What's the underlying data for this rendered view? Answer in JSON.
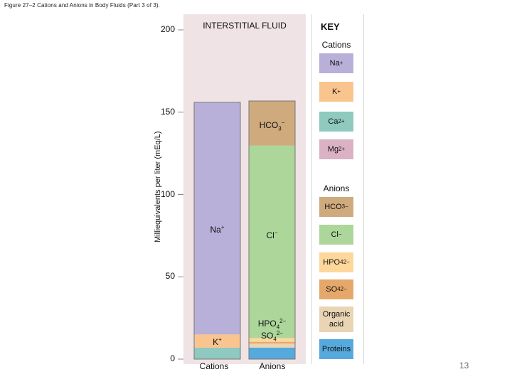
{
  "figure_caption": "Figure 27–2 Cations and Anions in Body Fluids (Part 3 of 3).",
  "slide_number": "13",
  "colors": {
    "Na": "#b8b0d8",
    "K": "#fac48f",
    "Ca": "#8fc9bf",
    "Mg": "#dbb2c4",
    "HCO3": "#cfaa7c",
    "Cl": "#acd69a",
    "HPO4": "#fdd79b",
    "SO4": "#e6a86a",
    "Organic": "#e9d4b4",
    "Proteins": "#56a9dd",
    "panel": "#efe3e6"
  },
  "chart_data": {
    "type": "bar",
    "stacked": true,
    "title": "INTERSTITIAL FLUID",
    "xlabel": "",
    "ylabel": "Milliequivalents per liter (mEq/L)",
    "ylim": [
      0,
      200
    ],
    "yticks": [
      "0",
      "50",
      "100",
      "150",
      "200"
    ],
    "categories": [
      "Cations",
      "Anions"
    ],
    "series": [
      {
        "name": "Na+",
        "key": "Na",
        "values": [
          141,
          0
        ],
        "label": "Na+"
      },
      {
        "name": "K+",
        "key": "K",
        "values": [
          8,
          0
        ],
        "label": "K+"
      },
      {
        "name": "Ca2+",
        "key": "Ca",
        "values": [
          7,
          0
        ],
        "label": ""
      },
      {
        "name": "HCO3−",
        "key": "HCO3",
        "values": [
          0,
          27
        ],
        "label": "HCO3−"
      },
      {
        "name": "Cl−",
        "key": "Cl",
        "values": [
          0,
          117
        ],
        "label": "Cl−"
      },
      {
        "name": "HPO42−",
        "key": "HPO4",
        "values": [
          0,
          2.3
        ],
        "label": "HPO42−"
      },
      {
        "name": "SO42−",
        "key": "SO4",
        "values": [
          0,
          1
        ],
        "label": "SO42−"
      },
      {
        "name": "Organic acid",
        "key": "Organic",
        "values": [
          0,
          2.5
        ],
        "label": ""
      },
      {
        "name": "Proteins",
        "key": "Proteins",
        "values": [
          0,
          7
        ],
        "label": ""
      }
    ],
    "cation_order": [
      "Ca",
      "K",
      "Na"
    ],
    "anion_order": [
      "Proteins",
      "Organic",
      "SO4",
      "HPO4",
      "Cl",
      "HCO3"
    ]
  },
  "key": {
    "title": "KEY",
    "cations_heading": "Cations",
    "anions_heading": "Anions",
    "items": [
      {
        "key": "Na",
        "base": "Na",
        "sup": "+",
        "sub": ""
      },
      {
        "key": "K",
        "base": "K",
        "sup": "+",
        "sub": ""
      },
      {
        "key": "Ca",
        "base": "Ca",
        "sup": "2+",
        "sub": ""
      },
      {
        "key": "Mg",
        "base": "Mg",
        "sup": "2+",
        "sub": ""
      },
      {
        "key": "HCO3",
        "base": "HCO",
        "sub": "3",
        "sup": "−"
      },
      {
        "key": "Cl",
        "base": "Cl",
        "sup": "−",
        "sub": ""
      },
      {
        "key": "HPO4",
        "base": "HPO",
        "sub": "4",
        "sup": "2−"
      },
      {
        "key": "SO4",
        "base": "SO",
        "sub": "4",
        "sup": "2−"
      },
      {
        "key": "Organic",
        "base": "Organic acid",
        "sup": "",
        "sub": ""
      },
      {
        "key": "Proteins",
        "base": "Proteins",
        "sup": "",
        "sub": ""
      }
    ]
  }
}
